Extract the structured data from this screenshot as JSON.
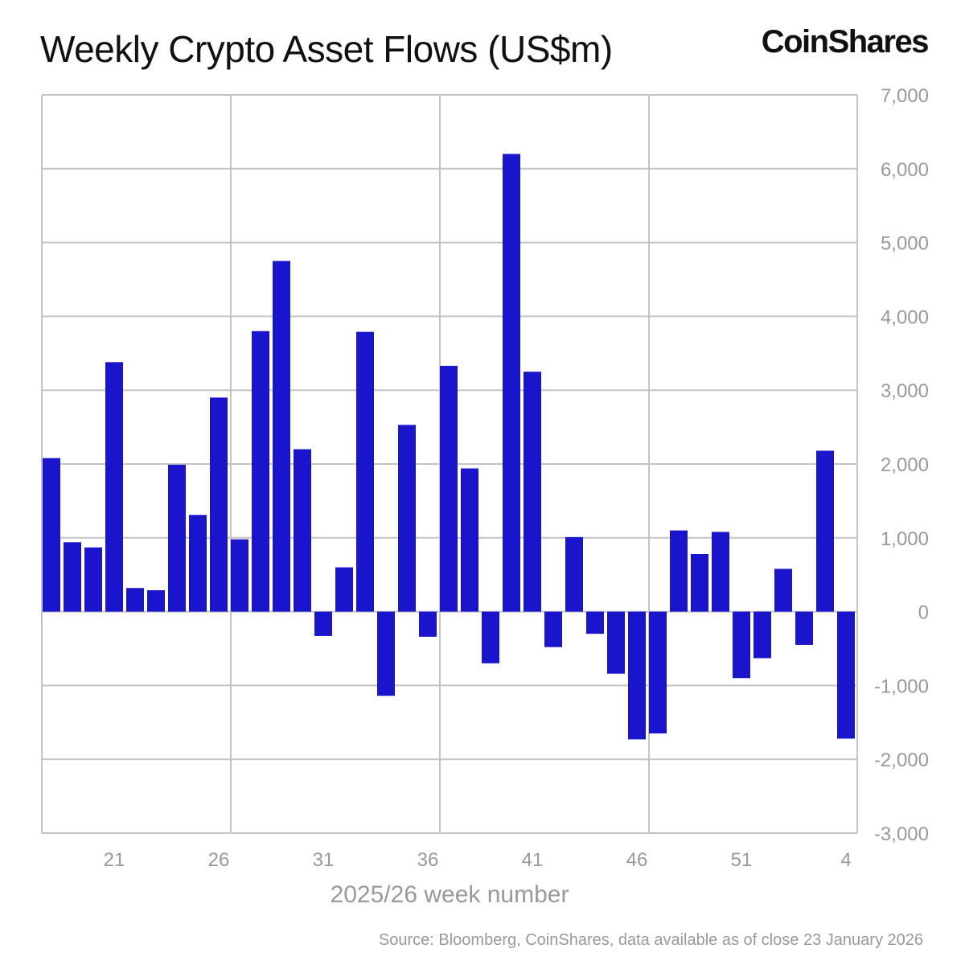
{
  "brand": "CoinShares",
  "chart_data": {
    "type": "bar",
    "title": "Weekly Crypto Asset Flows (US$m)",
    "xlabel": "2025/26 week number",
    "ylabel": "",
    "source": "Source: Bloomberg, CoinShares, data available as of close 23 January 2026",
    "ylim": [
      -3000,
      7000
    ],
    "yticks": [
      7000,
      6000,
      5000,
      4000,
      3000,
      2000,
      1000,
      0,
      -1000,
      -2000,
      -3000
    ],
    "ytick_labels": [
      "7,000",
      "6,000",
      "5,000",
      "4,000",
      "3,000",
      "2,000",
      "1,000",
      "0",
      "-1,000",
      "-2,000",
      "-3,000"
    ],
    "xtick_labels": [
      "21",
      "26",
      "31",
      "36",
      "41",
      "46",
      "51",
      "4"
    ],
    "grid": true,
    "legend": "none",
    "bar_color": "#1a14cc",
    "categories": [
      "18",
      "19",
      "20",
      "21",
      "22",
      "23",
      "24",
      "25",
      "26",
      "27",
      "28",
      "29",
      "30",
      "31",
      "32",
      "33",
      "34",
      "35",
      "36",
      "37",
      "38",
      "39",
      "40",
      "41",
      "42",
      "43",
      "44",
      "45",
      "46",
      "47",
      "48",
      "49",
      "50",
      "51",
      "52",
      "1",
      "2",
      "3",
      "4"
    ],
    "values": [
      2080,
      940,
      870,
      3380,
      320,
      290,
      1990,
      1310,
      2900,
      980,
      3800,
      4750,
      2200,
      -330,
      600,
      3790,
      -1140,
      2530,
      -340,
      3330,
      1940,
      -700,
      6200,
      3250,
      -480,
      1010,
      -300,
      -840,
      -1730,
      -1650,
      1100,
      780,
      1080,
      -900,
      -630,
      580,
      -450,
      2180,
      -1720
    ]
  }
}
